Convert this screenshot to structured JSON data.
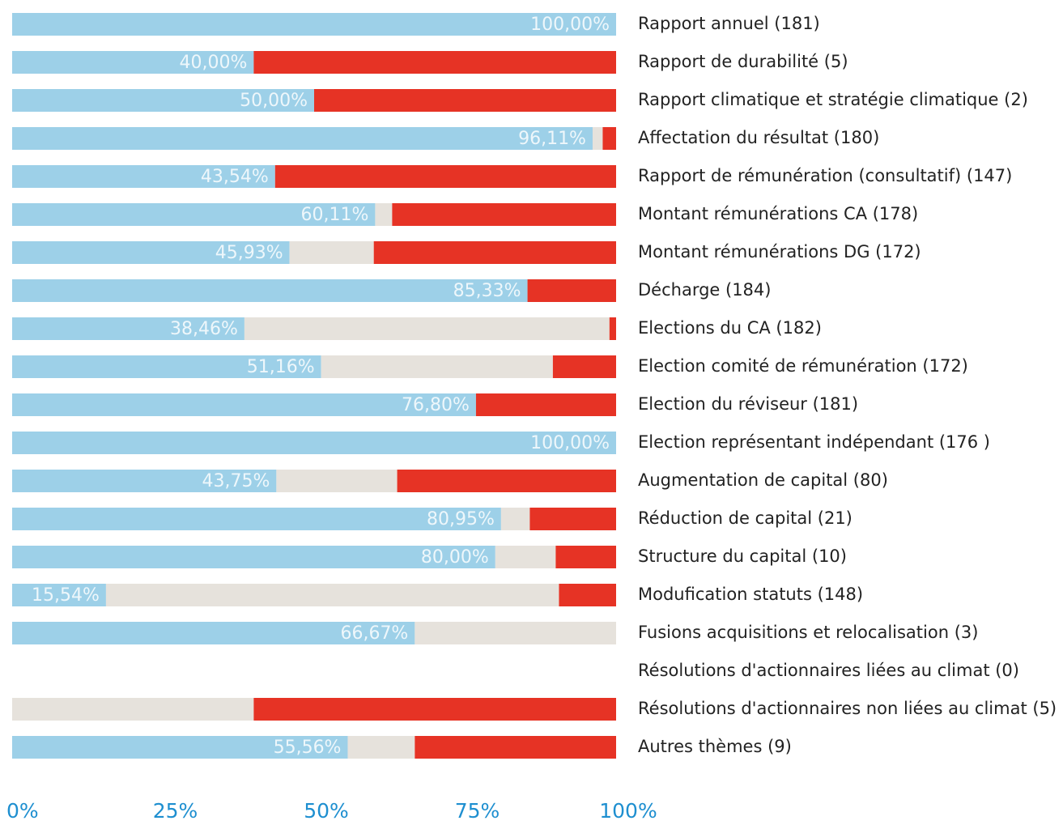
{
  "chart_data": {
    "type": "stacked_bar_horizontal",
    "categories": [
      "Rapport annuel (181)",
      "Rapport de durabilité (5)",
      "Rapport climatique et stratégie climatique (2)",
      "Affectation du résultat (180)",
      "Rapport de rémunération (consultatif) (147)",
      "Montant rémunérations CA (178)",
      "Montant rémunérations DG (172)",
      "Décharge (184)",
      "Elections du CA (182)",
      "Election comité de rémunération (172)",
      "Election du réviseur (181)",
      "Election représentant indépendant (176 )",
      "Augmentation de capital (80)",
      "Réduction de capital (21)",
      "Structure du capital (10)",
      "Modufication statuts (148)",
      "Fusions acquisitions et relocalisation (3)",
      "Résolutions d'actionnaires liées au climat (0)",
      "Résolutions d'actionnaires non liées au climat (5)",
      "Autres thèmes (9)"
    ],
    "series": [
      {
        "color": "#9dd0e8",
        "values": [
          100,
          40,
          50,
          96.11,
          43.54,
          60.11,
          45.93,
          85.33,
          38.46,
          51.16,
          76.8,
          100,
          43.75,
          80.95,
          80,
          15.54,
          66.67,
          0,
          0,
          55.56
        ],
        "value_labels": [
          "100,00%",
          "40,00%",
          "50,00%",
          "96,11%",
          "43,54%",
          "60,11%",
          "45,93%",
          "85,33%",
          "38,46%",
          "51,16%",
          "76,80%",
          "100,00%",
          "43,75%",
          "80,95%",
          "80,00%",
          "15,54%",
          "66,67%",
          null,
          null,
          "55,56%"
        ]
      },
      {
        "color": "#e6e2dc",
        "values": [
          0,
          0,
          0,
          1.67,
          0,
          2.81,
          13.95,
          0,
          60.44,
          38.37,
          0,
          0,
          20,
          4.76,
          10,
          75,
          33.33,
          0,
          40,
          11.11
        ]
      },
      {
        "color": "#e63325",
        "values": [
          0,
          60,
          50,
          2.22,
          56.46,
          37.08,
          40.12,
          14.67,
          1.1,
          10.47,
          23.2,
          0,
          36.25,
          14.29,
          10,
          9.46,
          0,
          0,
          60,
          33.33
        ]
      }
    ],
    "xlim": [
      0,
      100
    ],
    "xticks": [
      {
        "value": 0,
        "label": "0%"
      },
      {
        "value": 25,
        "label": "25%"
      },
      {
        "value": 50,
        "label": "50%"
      },
      {
        "value": 75,
        "label": "75%"
      },
      {
        "value": 100,
        "label": "100%"
      }
    ]
  }
}
